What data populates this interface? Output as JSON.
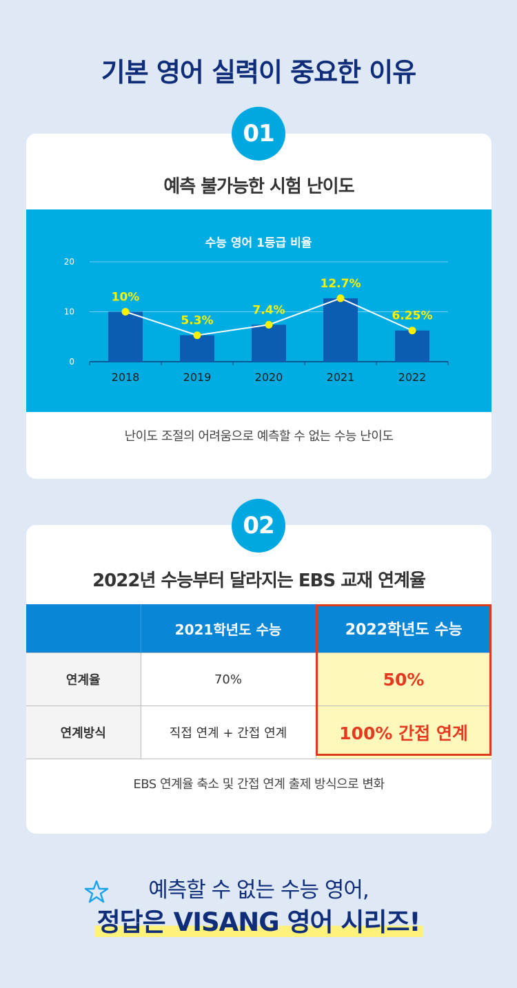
{
  "page": {
    "title": "기본 영어 실력이 중요한 이유"
  },
  "section1": {
    "badge": "01",
    "title": "예측 불가능한 시험 난이도",
    "caption": "난이도 조절의 어려움으로 예측할 수 없는 수능 난이도"
  },
  "chart_data": {
    "type": "bar",
    "title": "수능 영어 1등급 비율",
    "categories": [
      "2018",
      "2019",
      "2020",
      "2021",
      "2022"
    ],
    "values": [
      10,
      5.3,
      7.4,
      12.7,
      6.25
    ],
    "labels": [
      "10%",
      "5.3%",
      "7.4%",
      "12.7%",
      "6.25%"
    ],
    "yticks": [
      "0",
      "10",
      "20"
    ],
    "ylim": [
      0,
      20
    ],
    "overlay_line": true,
    "grid": true,
    "colors": {
      "bar": "#0a5db3",
      "point": "#fff200",
      "line": "#ffffff",
      "label": "#fff200"
    }
  },
  "section2": {
    "badge": "02",
    "title": "2022년 수능부터 달라지는 EBS 교재 연계율",
    "table": {
      "headers": [
        "",
        "2021학년도 수능",
        "2022학년도 수능"
      ],
      "rows": [
        [
          "연계율",
          "70%",
          "50%"
        ],
        [
          "연계방식",
          "직접 연계 + 간접 연계",
          "100% 간접 연계"
        ]
      ]
    },
    "caption": "EBS 연계율 축소 및 간접 연계 출제 방식으로 변화"
  },
  "footer": {
    "line1": "예측할 수 없는 수능 영어,",
    "line2": "정답은 VISANG 영어 시리즈!"
  }
}
